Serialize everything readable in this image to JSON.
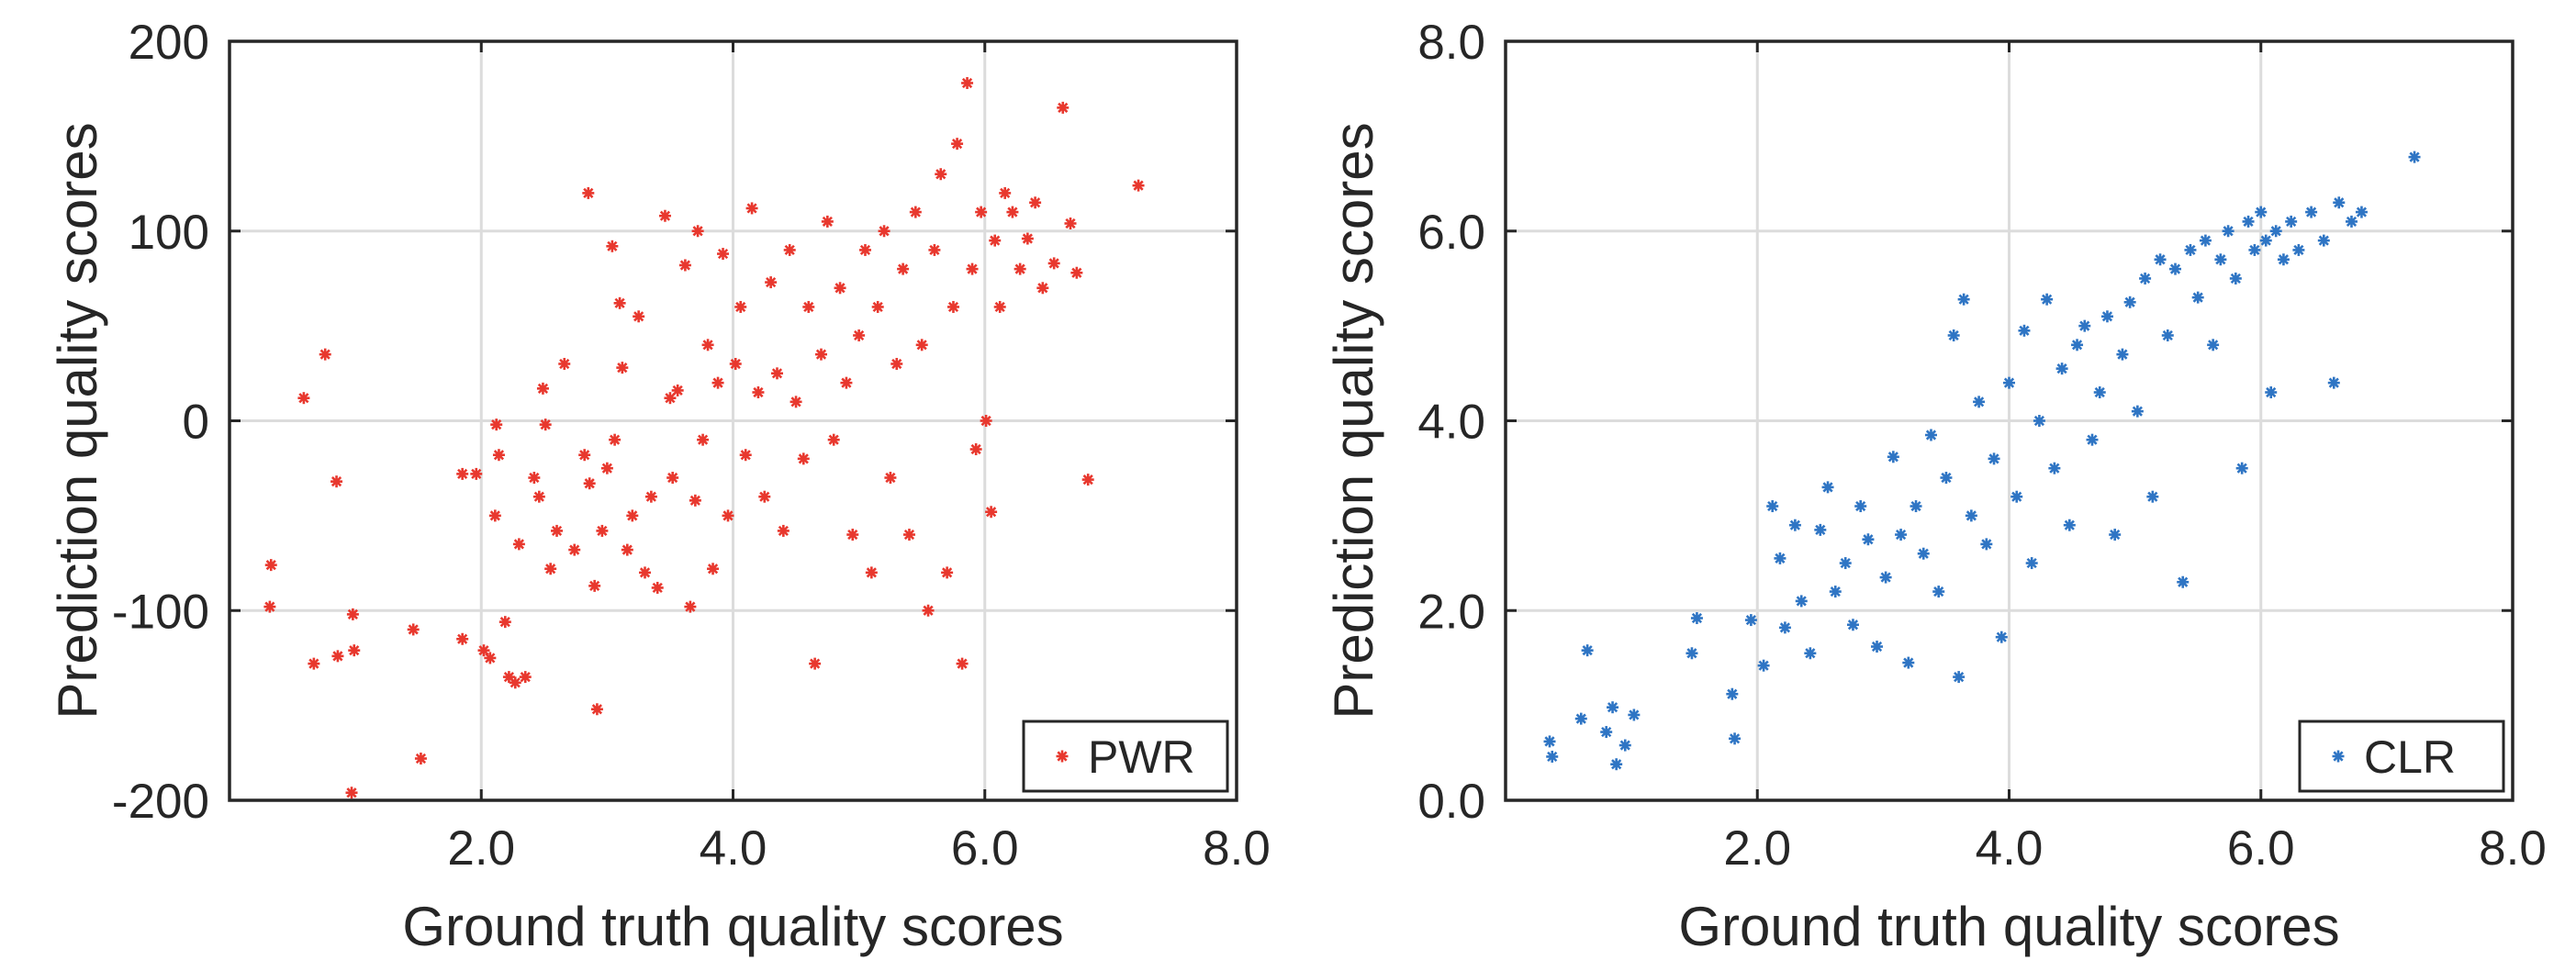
{
  "chart_data": [
    {
      "type": "scatter",
      "xlabel": "Ground truth quality scores",
      "ylabel": "Prediction quality scores",
      "xlim": [
        0,
        8.0
      ],
      "ylim": [
        -200,
        200
      ],
      "xticks": [
        "2.0",
        "4.0",
        "6.0",
        "8.0"
      ],
      "xtick_values": [
        2,
        4,
        6,
        8
      ],
      "yticks": [
        "200",
        "100",
        "0",
        "-100",
        "-200"
      ],
      "ytick_values": [
        200,
        100,
        0,
        -100,
        -200
      ],
      "grid": true,
      "legend_position": "bottom-right",
      "marker": "asterisk",
      "series": [
        {
          "name": "PWR",
          "color": "#e8382e",
          "points": [
            [
              0.33,
              -76
            ],
            [
              0.32,
              -98
            ],
            [
              0.59,
              12
            ],
            [
              0.76,
              35
            ],
            [
              0.85,
              -32
            ],
            [
              0.67,
              -128
            ],
            [
              0.86,
              -124
            ],
            [
              0.99,
              -121
            ],
            [
              0.98,
              -102
            ],
            [
              0.97,
              -196
            ],
            [
              1.52,
              -178
            ],
            [
              1.46,
              -110
            ],
            [
              1.85,
              -28
            ],
            [
              1.85,
              -115
            ],
            [
              1.96,
              -28
            ],
            [
              2.02,
              -121
            ],
            [
              2.07,
              -125
            ],
            [
              2.12,
              -2
            ],
            [
              2.14,
              -18
            ],
            [
              2.11,
              -50
            ],
            [
              2.19,
              -106
            ],
            [
              2.22,
              -135
            ],
            [
              2.27,
              -138
            ],
            [
              2.3,
              -65
            ],
            [
              2.35,
              -135
            ],
            [
              2.42,
              -30
            ],
            [
              2.46,
              -40
            ],
            [
              2.49,
              17
            ],
            [
              2.51,
              -2
            ],
            [
              2.55,
              -78
            ],
            [
              2.6,
              -58
            ],
            [
              2.66,
              30
            ],
            [
              2.74,
              -68
            ],
            [
              2.82,
              -18
            ],
            [
              2.85,
              120
            ],
            [
              2.86,
              -33
            ],
            [
              2.9,
              -87
            ],
            [
              2.92,
              -152
            ],
            [
              2.96,
              -58
            ],
            [
              3.0,
              -25
            ],
            [
              3.04,
              92
            ],
            [
              3.06,
              -10
            ],
            [
              3.1,
              62
            ],
            [
              3.12,
              28
            ],
            [
              3.16,
              -68
            ],
            [
              3.2,
              -50
            ],
            [
              3.25,
              55
            ],
            [
              3.3,
              -80
            ],
            [
              3.35,
              -40
            ],
            [
              3.4,
              -88
            ],
            [
              3.46,
              108
            ],
            [
              3.5,
              12
            ],
            [
              3.52,
              -30
            ],
            [
              3.56,
              16
            ],
            [
              3.62,
              82
            ],
            [
              3.66,
              -98
            ],
            [
              3.7,
              -42
            ],
            [
              3.72,
              100
            ],
            [
              3.76,
              -10
            ],
            [
              3.8,
              40
            ],
            [
              3.84,
              -78
            ],
            [
              3.88,
              20
            ],
            [
              3.92,
              88
            ],
            [
              3.96,
              -50
            ],
            [
              4.02,
              30
            ],
            [
              4.06,
              60
            ],
            [
              4.1,
              -18
            ],
            [
              4.15,
              112
            ],
            [
              4.2,
              15
            ],
            [
              4.25,
              -40
            ],
            [
              4.3,
              73
            ],
            [
              4.35,
              25
            ],
            [
              4.4,
              -58
            ],
            [
              4.45,
              90
            ],
            [
              4.5,
              10
            ],
            [
              4.56,
              -20
            ],
            [
              4.6,
              60
            ],
            [
              4.65,
              -128
            ],
            [
              4.7,
              35
            ],
            [
              4.75,
              105
            ],
            [
              4.8,
              -10
            ],
            [
              4.85,
              70
            ],
            [
              4.9,
              20
            ],
            [
              4.95,
              -60
            ],
            [
              5.0,
              45
            ],
            [
              5.05,
              90
            ],
            [
              5.1,
              -80
            ],
            [
              5.15,
              60
            ],
            [
              5.2,
              100
            ],
            [
              5.25,
              -30
            ],
            [
              5.3,
              30
            ],
            [
              5.35,
              80
            ],
            [
              5.4,
              -60
            ],
            [
              5.45,
              110
            ],
            [
              5.5,
              40
            ],
            [
              5.55,
              -100
            ],
            [
              5.6,
              90
            ],
            [
              5.65,
              130
            ],
            [
              5.7,
              -80
            ],
            [
              5.75,
              60
            ],
            [
              5.78,
              146
            ],
            [
              5.82,
              -128
            ],
            [
              5.86,
              178
            ],
            [
              5.9,
              80
            ],
            [
              5.93,
              -15
            ],
            [
              5.97,
              110
            ],
            [
              6.01,
              0
            ],
            [
              6.05,
              -48
            ],
            [
              6.08,
              95
            ],
            [
              6.12,
              60
            ],
            [
              6.16,
              120
            ],
            [
              6.22,
              110
            ],
            [
              6.28,
              80
            ],
            [
              6.34,
              96
            ],
            [
              6.4,
              115
            ],
            [
              6.46,
              70
            ],
            [
              6.55,
              83
            ],
            [
              6.62,
              165
            ],
            [
              6.68,
              104
            ],
            [
              6.73,
              78
            ],
            [
              6.82,
              -31
            ],
            [
              7.22,
              124
            ]
          ]
        }
      ]
    },
    {
      "type": "scatter",
      "xlabel": "Ground truth quality scores",
      "ylabel": "Prediction quality scores",
      "xlim": [
        0,
        8.0
      ],
      "ylim": [
        0,
        8.0
      ],
      "xticks": [
        "2.0",
        "4.0",
        "6.0",
        "8.0"
      ],
      "xtick_values": [
        2,
        4,
        6,
        8
      ],
      "yticks": [
        "8.0",
        "6.0",
        "4.0",
        "2.0",
        "0.0"
      ],
      "ytick_values": [
        8,
        6,
        4,
        2,
        0
      ],
      "grid": true,
      "legend_position": "bottom-right",
      "marker": "asterisk",
      "series": [
        {
          "name": "CLR",
          "color": "#2f75c4",
          "points": [
            [
              0.35,
              0.62
            ],
            [
              0.37,
              0.46
            ],
            [
              0.6,
              0.86
            ],
            [
              0.65,
              1.58
            ],
            [
              0.8,
              0.72
            ],
            [
              0.85,
              0.98
            ],
            [
              0.88,
              0.38
            ],
            [
              0.95,
              0.58
            ],
            [
              1.02,
              0.9
            ],
            [
              1.48,
              1.55
            ],
            [
              1.52,
              1.92
            ],
            [
              1.8,
              1.12
            ],
            [
              1.82,
              0.65
            ],
            [
              1.95,
              1.9
            ],
            [
              2.05,
              1.42
            ],
            [
              2.12,
              3.1
            ],
            [
              2.18,
              2.55
            ],
            [
              2.22,
              1.82
            ],
            [
              2.3,
              2.9
            ],
            [
              2.35,
              2.1
            ],
            [
              2.42,
              1.55
            ],
            [
              2.5,
              2.85
            ],
            [
              2.56,
              3.3
            ],
            [
              2.62,
              2.2
            ],
            [
              2.7,
              2.5
            ],
            [
              2.76,
              1.85
            ],
            [
              2.82,
              3.1
            ],
            [
              2.88,
              2.75
            ],
            [
              2.95,
              1.62
            ],
            [
              3.02,
              2.35
            ],
            [
              3.08,
              3.62
            ],
            [
              3.14,
              2.8
            ],
            [
              3.2,
              1.45
            ],
            [
              3.26,
              3.1
            ],
            [
              3.32,
              2.6
            ],
            [
              3.38,
              3.85
            ],
            [
              3.44,
              2.2
            ],
            [
              3.5,
              3.4
            ],
            [
              3.56,
              4.9
            ],
            [
              3.6,
              1.3
            ],
            [
              3.64,
              5.28
            ],
            [
              3.7,
              3.0
            ],
            [
              3.76,
              4.2
            ],
            [
              3.82,
              2.7
            ],
            [
              3.88,
              3.6
            ],
            [
              3.94,
              1.72
            ],
            [
              4.0,
              4.4
            ],
            [
              4.06,
              3.2
            ],
            [
              4.12,
              4.95
            ],
            [
              4.18,
              2.5
            ],
            [
              4.24,
              4.0
            ],
            [
              4.3,
              5.28
            ],
            [
              4.36,
              3.5
            ],
            [
              4.42,
              4.55
            ],
            [
              4.48,
              2.9
            ],
            [
              4.54,
              4.8
            ],
            [
              4.6,
              5.0
            ],
            [
              4.66,
              3.8
            ],
            [
              4.72,
              4.3
            ],
            [
              4.78,
              5.1
            ],
            [
              4.84,
              2.8
            ],
            [
              4.9,
              4.7
            ],
            [
              4.96,
              5.25
            ],
            [
              5.02,
              4.1
            ],
            [
              5.08,
              5.5
            ],
            [
              5.14,
              3.2
            ],
            [
              5.2,
              5.7
            ],
            [
              5.26,
              4.9
            ],
            [
              5.32,
              5.6
            ],
            [
              5.38,
              2.3
            ],
            [
              5.44,
              5.8
            ],
            [
              5.5,
              5.3
            ],
            [
              5.56,
              5.9
            ],
            [
              5.62,
              4.8
            ],
            [
              5.68,
              5.7
            ],
            [
              5.74,
              6.0
            ],
            [
              5.8,
              5.5
            ],
            [
              5.85,
              3.5
            ],
            [
              5.9,
              6.1
            ],
            [
              5.95,
              5.8
            ],
            [
              6.0,
              6.2
            ],
            [
              6.04,
              5.9
            ],
            [
              6.08,
              4.3
            ],
            [
              6.12,
              6.0
            ],
            [
              6.18,
              5.7
            ],
            [
              6.24,
              6.1
            ],
            [
              6.3,
              5.8
            ],
            [
              6.4,
              6.2
            ],
            [
              6.5,
              5.9
            ],
            [
              6.58,
              4.4
            ],
            [
              6.62,
              6.3
            ],
            [
              6.72,
              6.1
            ],
            [
              6.8,
              6.2
            ],
            [
              7.22,
              6.78
            ]
          ]
        }
      ]
    }
  ]
}
